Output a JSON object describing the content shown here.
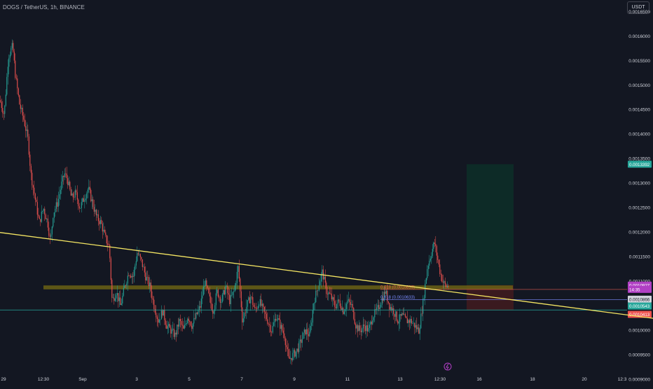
{
  "header": {
    "symbol_title": "DOGS / TetherUS, 1h, BINANCE",
    "currency_button": "USDT"
  },
  "colors": {
    "background": "#131722",
    "up": "#26a69a",
    "down": "#ef5350",
    "trendline": "#f5e663",
    "support_zone": "#6b6214",
    "target_zone": "#0d2b27",
    "stop_zone": "#3a1a1f",
    "current_price": "#b03fc4"
  },
  "chart_data": {
    "type": "candlestick",
    "title": "DOGS / TetherUS, 1h, BINANCE",
    "ylim": [
      0.000888,
      0.001674
    ],
    "xlim": [
      0,
      932
    ],
    "y_ticks": [
      "0.0016500",
      "0.0016000",
      "0.0015500",
      "0.0015000",
      "0.0014500",
      "0.0014000",
      "0.0013500",
      "0.0013000",
      "0.0012500",
      "0.0012000",
      "0.0011500",
      "0.0011000",
      "0.0010500",
      "0.0010000",
      "0.0009500",
      "0.0009000"
    ],
    "x_ticks": [
      {
        "label": "29",
        "x": 5
      },
      {
        "label": "12:30",
        "x": 62
      },
      {
        "label": "Sep",
        "x": 118
      },
      {
        "label": "3",
        "x": 195
      },
      {
        "label": "5",
        "x": 270
      },
      {
        "label": "7",
        "x": 345
      },
      {
        "label": "9",
        "x": 420
      },
      {
        "label": "11",
        "x": 496
      },
      {
        "label": "13",
        "x": 571
      },
      {
        "label": "12:30",
        "x": 628
      },
      {
        "label": "16",
        "x": 684
      },
      {
        "label": "18",
        "x": 760
      },
      {
        "label": "20",
        "x": 834
      },
      {
        "label": "12:3",
        "x": 888
      }
    ],
    "close_path": [
      [
        0,
        0.00147
      ],
      [
        6,
        0.00144
      ],
      [
        12,
        0.00156
      ],
      [
        18,
        0.00158
      ],
      [
        22,
        0.00152
      ],
      [
        28,
        0.00146
      ],
      [
        34,
        0.00143
      ],
      [
        40,
        0.00139
      ],
      [
        44,
        0.00132
      ],
      [
        50,
        0.00127
      ],
      [
        56,
        0.00122
      ],
      [
        62,
        0.00125
      ],
      [
        68,
        0.00122
      ],
      [
        72,
        0.00118
      ],
      [
        76,
        0.00124
      ],
      [
        82,
        0.00126
      ],
      [
        88,
        0.0013
      ],
      [
        92,
        0.00132
      ],
      [
        96,
        0.00131
      ],
      [
        102,
        0.00127
      ],
      [
        108,
        0.00128
      ],
      [
        114,
        0.00125
      ],
      [
        120,
        0.00127
      ],
      [
        126,
        0.00129
      ],
      [
        132,
        0.00126
      ],
      [
        138,
        0.00123
      ],
      [
        144,
        0.00122
      ],
      [
        150,
        0.00119
      ],
      [
        156,
        0.00117
      ],
      [
        160,
        0.00106
      ],
      [
        166,
        0.00108
      ],
      [
        172,
        0.00105
      ],
      [
        178,
        0.00109
      ],
      [
        184,
        0.00112
      ],
      [
        190,
        0.00111
      ],
      [
        196,
        0.00116
      ],
      [
        202,
        0.00114
      ],
      [
        208,
        0.00111
      ],
      [
        214,
        0.00109
      ],
      [
        220,
        0.00105
      ],
      [
        226,
        0.00102
      ],
      [
        232,
        0.00104
      ],
      [
        238,
        0.00101
      ],
      [
        244,
        0.001
      ],
      [
        250,
        0.00099
      ],
      [
        256,
        0.00102
      ],
      [
        262,
        0.001
      ],
      [
        268,
        0.00103
      ],
      [
        274,
        0.00101
      ],
      [
        280,
        0.00103
      ],
      [
        286,
        0.00105
      ],
      [
        292,
        0.0011
      ],
      [
        298,
        0.00107
      ],
      [
        304,
        0.00104
      ],
      [
        310,
        0.00108
      ],
      [
        316,
        0.00106
      ],
      [
        322,
        0.00109
      ],
      [
        328,
        0.00106
      ],
      [
        334,
        0.00108
      ],
      [
        340,
        0.00113
      ],
      [
        346,
        0.00102
      ],
      [
        352,
        0.00105
      ],
      [
        358,
        0.00107
      ],
      [
        364,
        0.00104
      ],
      [
        370,
        0.00106
      ],
      [
        376,
        0.00104
      ],
      [
        382,
        0.00102
      ],
      [
        388,
        0.001
      ],
      [
        394,
        0.00103
      ],
      [
        400,
        0.00101
      ],
      [
        406,
        0.00099
      ],
      [
        412,
        0.00094
      ],
      [
        418,
        0.00095
      ],
      [
        424,
        0.00096
      ],
      [
        430,
        0.00098
      ],
      [
        436,
        0.001
      ],
      [
        442,
        0.00099
      ],
      [
        448,
        0.00106
      ],
      [
        454,
        0.00109
      ],
      [
        460,
        0.00112
      ],
      [
        466,
        0.00108
      ],
      [
        472,
        0.00107
      ],
      [
        478,
        0.00105
      ],
      [
        484,
        0.00106
      ],
      [
        490,
        0.00104
      ],
      [
        496,
        0.00106
      ],
      [
        502,
        0.00105
      ],
      [
        508,
        0.00101
      ],
      [
        514,
        0.001
      ],
      [
        520,
        0.00101
      ],
      [
        526,
        0.001
      ],
      [
        532,
        0.00103
      ],
      [
        538,
        0.00104
      ],
      [
        544,
        0.00106
      ],
      [
        550,
        0.00108
      ],
      [
        556,
        0.00105
      ],
      [
        562,
        0.00104
      ],
      [
        568,
        0.00102
      ],
      [
        574,
        0.00103
      ],
      [
        580,
        0.00102
      ],
      [
        586,
        0.00102
      ],
      [
        592,
        0.00101
      ],
      [
        598,
        0.001
      ],
      [
        604,
        0.00106
      ],
      [
        610,
        0.00113
      ],
      [
        616,
        0.00116
      ],
      [
        620,
        0.00118
      ],
      [
        624,
        0.00115
      ],
      [
        628,
        0.00112
      ],
      [
        632,
        0.0011
      ],
      [
        636,
        0.00109
      ],
      [
        640,
        0.001091
      ]
    ],
    "trendline": {
      "x": [
        0,
        932
      ],
      "y": [
        0.0012,
        0.001025
      ]
    },
    "support_zone": {
      "x": [
        62,
        732
      ],
      "y": [
        0.001092,
        0.001084
      ]
    },
    "horizontal_line": {
      "y": 0.001042,
      "color": "#26a69a"
    },
    "fib_lines": [
      {
        "label": "0.618 (0.0010839)",
        "y": 0.0010839,
        "color": "#e05a50",
        "x_start": 543
      },
      {
        "label": "0.618 (0.0010633)",
        "y": 0.0010633,
        "color": "#7b8cff",
        "x_start": 543
      }
    ],
    "target_zone": {
      "x": [
        666,
        733
      ],
      "y": [
        0.0013392,
        0.0010927
      ]
    },
    "stop_zone": {
      "x": [
        666,
        733
      ],
      "y": [
        0.0010927,
        0.0010413
      ]
    },
    "price_labels": [
      {
        "text": "0.0013392",
        "y": 0.0013392,
        "bg": "#26a69a",
        "color": "#ffffff"
      },
      {
        "text": "0.0010927",
        "y": 0.0010927,
        "bg": "#b03fc4",
        "color": "#ffffff"
      },
      {
        "text": "14:35",
        "y": 0.001084,
        "bg": "#b03fc4",
        "color": "#ffffff"
      },
      {
        "text": "0.0010866",
        "y": 0.001064,
        "bg": "#d1d4dc",
        "color": "#131722"
      },
      {
        "text": "0.0010543",
        "y": 0.00105,
        "bg": "#26a69a",
        "color": "#ffffff"
      },
      {
        "text": "0.0010413",
        "y": 0.001033,
        "bg": "#ef5350",
        "color": "#ffffff"
      }
    ]
  }
}
